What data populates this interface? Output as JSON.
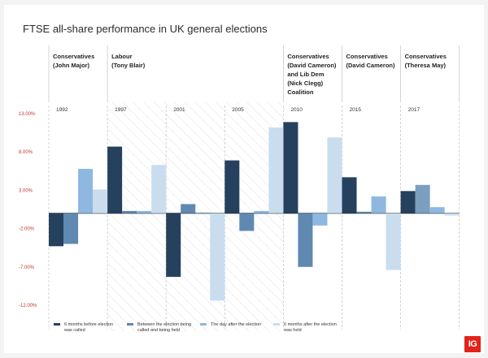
{
  "title": "FTSE all-share performance in UK general elections",
  "logo_text": "IG",
  "colors": {
    "s1": "#25415e",
    "s2": "#5f89b0",
    "s3": "#8eb8e0",
    "s4": "#c9ddef",
    "tick": "#c0392b",
    "hatch": "#e6e6e6",
    "s2_2017": "#7b9fbf"
  },
  "chart_data": {
    "type": "bar",
    "title": "FTSE all-share performance in UK general elections",
    "categories": [
      "1992",
      "1997",
      "2001",
      "2005",
      "2010",
      "2015",
      "2017"
    ],
    "series": [
      {
        "name": "6 months before election was called",
        "values": [
          -4.3,
          8.7,
          -8.3,
          6.9,
          11.9,
          4.7,
          2.9
        ]
      },
      {
        "name": "Between the election being called and being held",
        "values": [
          -4.0,
          0.3,
          1.2,
          -2.3,
          -7.0,
          0.2,
          3.7
        ]
      },
      {
        "name": "The day after the election",
        "values": [
          5.8,
          0.3,
          0.1,
          0.3,
          -1.6,
          2.2,
          0.8
        ]
      },
      {
        "name": "6 months after the election was held",
        "values": [
          3.1,
          6.3,
          -11.4,
          11.2,
          9.9,
          -7.4,
          -0.3
        ]
      }
    ],
    "yticks": [
      "13.00%",
      "8.00%",
      "3.00%",
      "-2.00%",
      "-7.00%",
      "-12.00%"
    ],
    "ylim": [
      -12,
      13
    ],
    "governments": [
      {
        "lines": [
          "Conservatives",
          "(John Major)"
        ],
        "years": [
          "1992"
        ]
      },
      {
        "lines": [
          "Labour",
          "(Tony Blair)"
        ],
        "years": [
          "1997",
          "2001",
          "2005"
        ]
      },
      {
        "lines": [
          "Conservatives",
          "(David Cameron)",
          "and Lib Dem",
          "(Nick Clegg)",
          "Coalition"
        ],
        "years": [
          "2010"
        ]
      },
      {
        "lines": [
          "Conservatives",
          "(David Cameron)"
        ],
        "years": [
          "2015"
        ]
      },
      {
        "lines": [
          "Conservatives",
          "(Theresa May)"
        ],
        "years": [
          "2017"
        ]
      }
    ],
    "legend": [
      {
        "lines": [
          "6 months before election",
          "was called"
        ]
      },
      {
        "lines": [
          "Between the election being",
          "called and being held"
        ]
      },
      {
        "lines": [
          "The day after the election"
        ]
      },
      {
        "lines": [
          "6 months after the election",
          "was held"
        ]
      }
    ]
  }
}
